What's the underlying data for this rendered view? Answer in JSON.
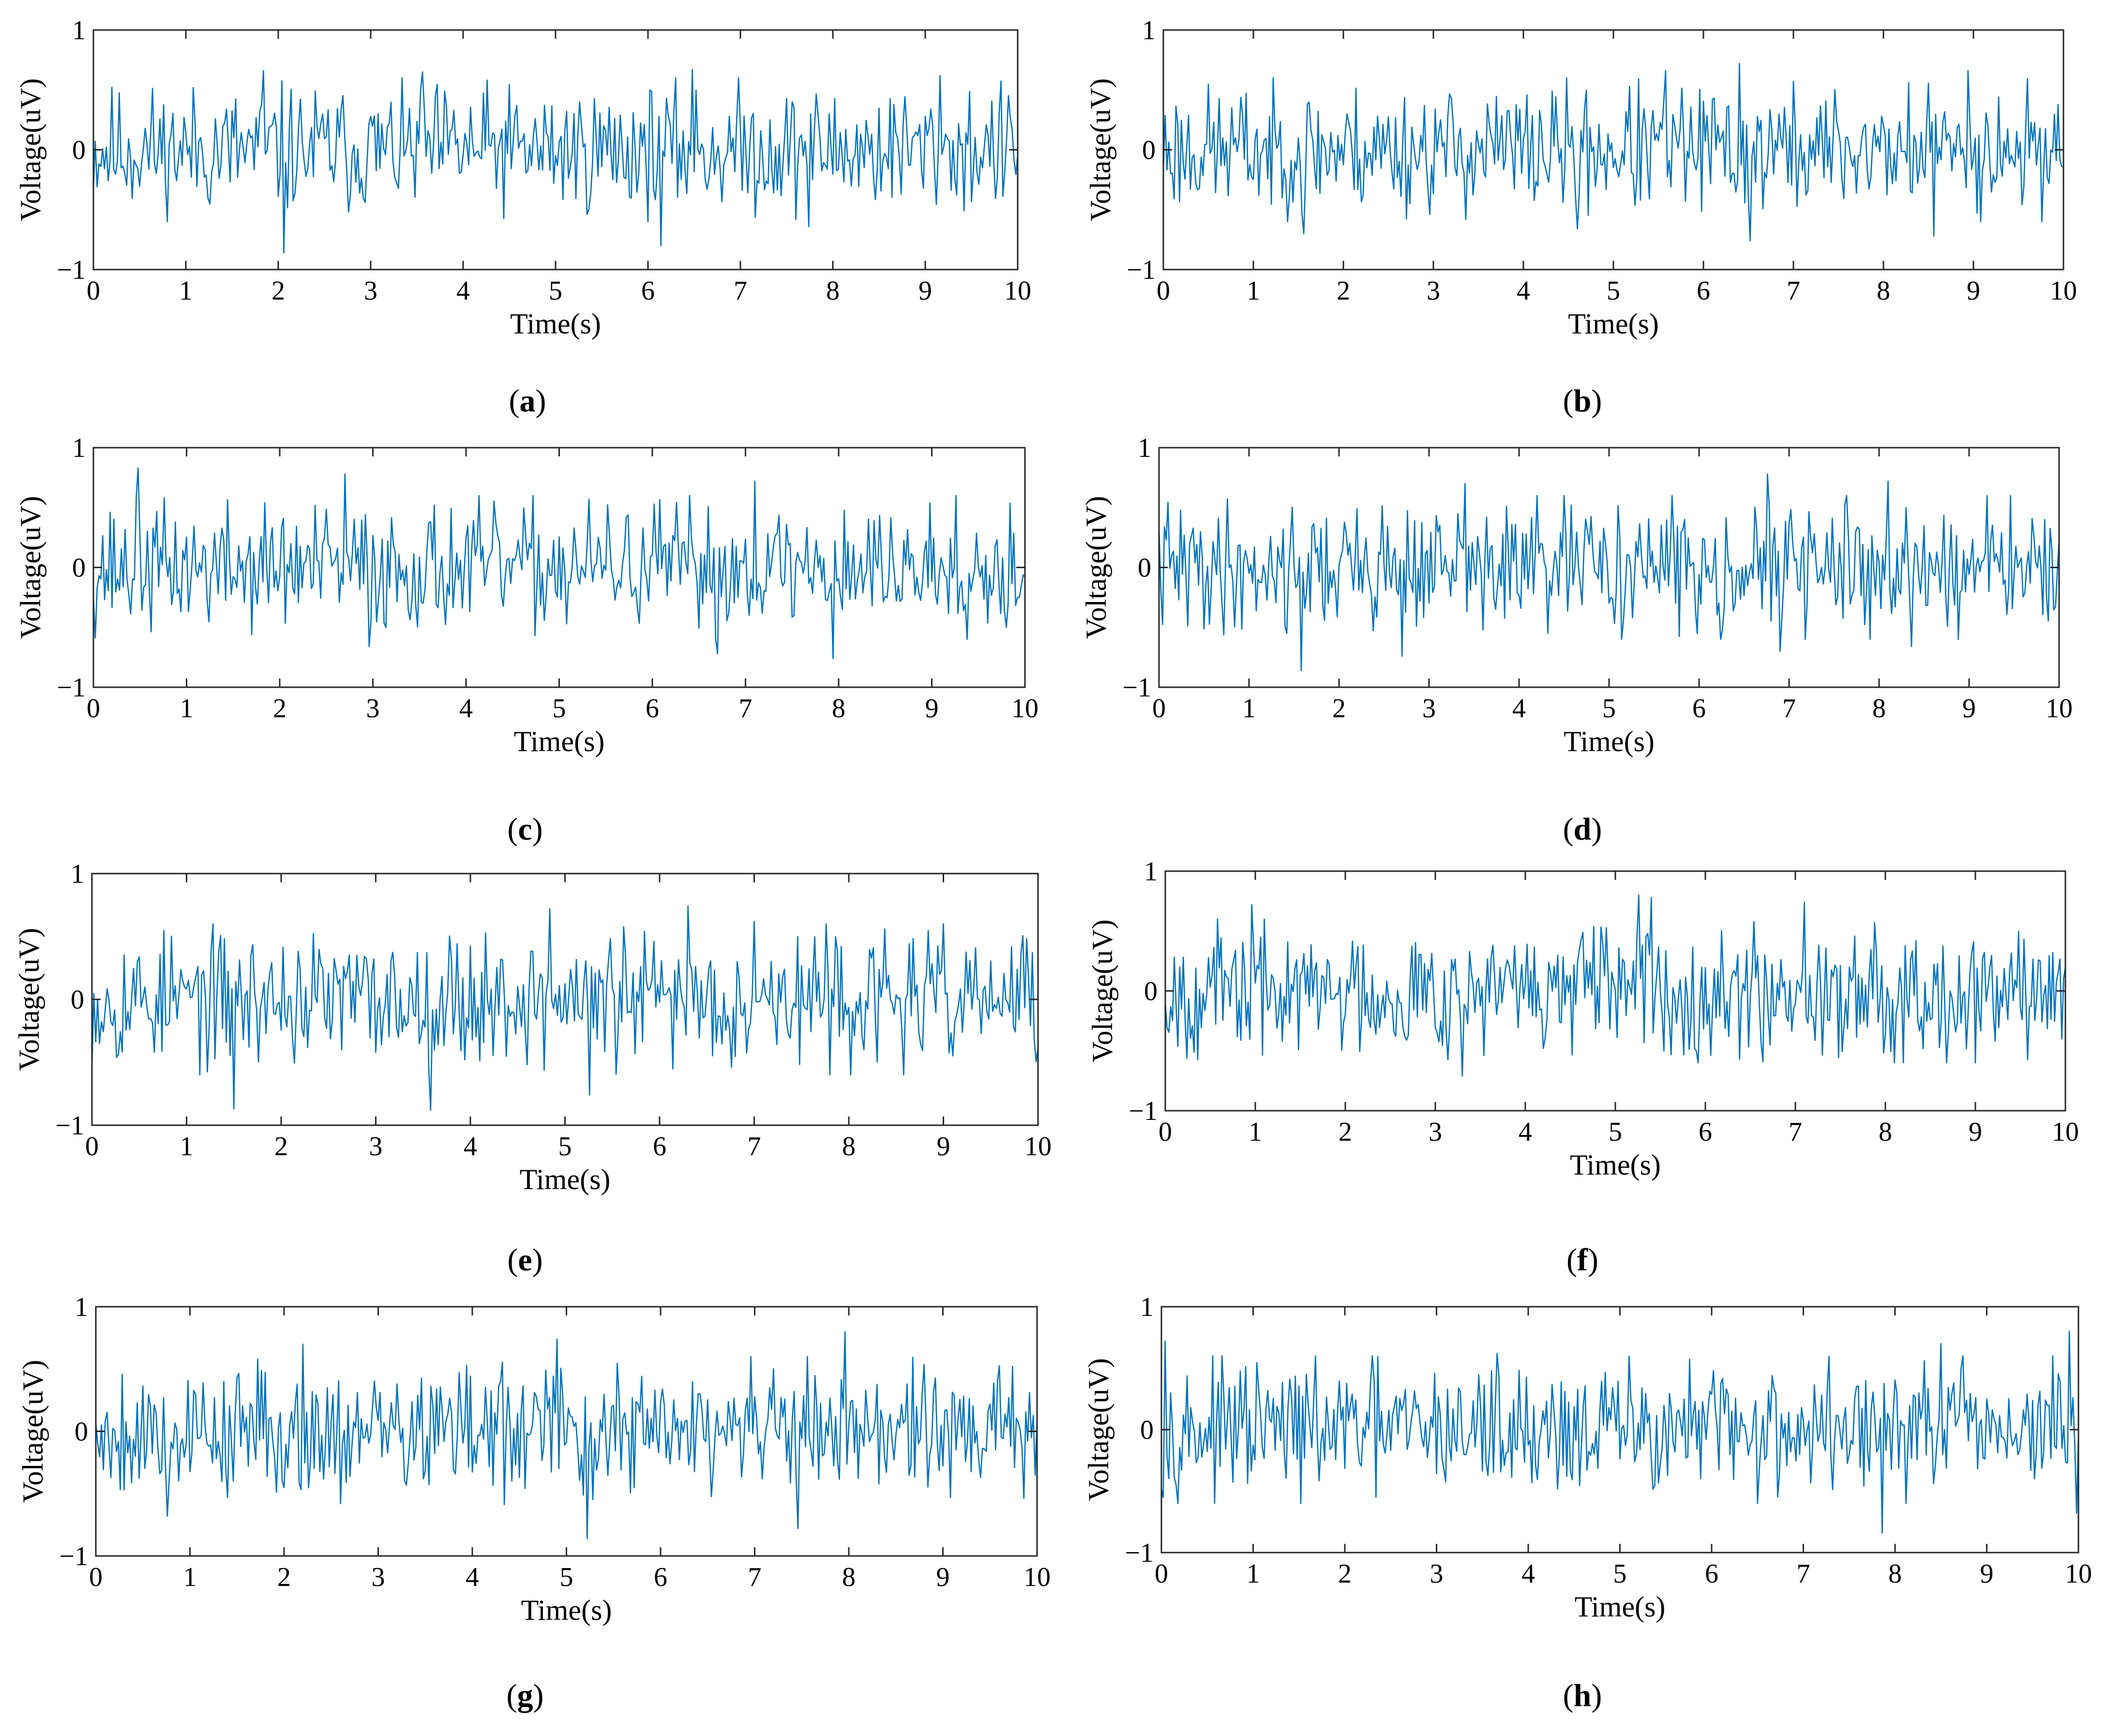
{
  "figure": {
    "style": {
      "trace_color": "#0072BD",
      "axis_color": "#262626"
    }
  },
  "chart_data": [
    {
      "id": "a",
      "label_letter": "a",
      "type": "line",
      "xlabel": "Time(s)",
      "ylabel": "Voltage(uV)",
      "xlim": [
        0,
        10
      ],
      "ylim": [
        -1,
        1
      ],
      "xticks": [
        0,
        1,
        2,
        3,
        4,
        5,
        6,
        7,
        8,
        9,
        10
      ],
      "yticks": [
        -1,
        0,
        1
      ],
      "ytick_labels": [
        "−1",
        "0",
        "1"
      ],
      "sample_rate_hz": 50,
      "duration_s": 10,
      "peaks": [
        [
          1.83,
          0.66
        ],
        [
          2.07,
          -0.86
        ],
        [
          3.55,
          0.65
        ],
        [
          6.13,
          -0.8
        ],
        [
          6.48,
          0.67
        ],
        [
          7.74,
          -0.64
        ],
        [
          9.15,
          0.62
        ]
      ],
      "seed": 11
    },
    {
      "id": "b",
      "label_letter": "b",
      "type": "line",
      "xlabel": "Time(s)",
      "ylabel": "Voltage(uV)",
      "xlim": [
        0,
        10
      ],
      "ylim": [
        -1,
        1
      ],
      "xticks": [
        0,
        1,
        2,
        3,
        4,
        5,
        6,
        7,
        8,
        9,
        10
      ],
      "yticks": [
        -1,
        0,
        1
      ],
      "ytick_labels": [
        "−1",
        "0",
        "1"
      ],
      "sample_rate_hz": 50,
      "duration_s": 10,
      "peaks": [
        [
          1.55,
          -0.7
        ],
        [
          4.6,
          -0.66
        ],
        [
          5.58,
          0.66
        ],
        [
          6.4,
          0.72
        ],
        [
          6.52,
          -0.76
        ],
        [
          8.95,
          0.66
        ],
        [
          8.55,
          -0.72
        ]
      ],
      "seed": 23
    },
    {
      "id": "c",
      "label_letter": "c",
      "type": "line",
      "xlabel": "Time(s)",
      "ylabel": "Voltage(uV)",
      "xlim": [
        0,
        10
      ],
      "ylim": [
        -1,
        1
      ],
      "xticks": [
        0,
        1,
        2,
        3,
        4,
        5,
        6,
        7,
        8,
        9,
        10
      ],
      "yticks": [
        -1,
        0,
        1
      ],
      "ytick_labels": [
        "−1",
        "0",
        "1"
      ],
      "sample_rate_hz": 50,
      "duration_s": 10,
      "peaks": [
        [
          0.48,
          0.83
        ],
        [
          2.7,
          0.78
        ],
        [
          2.95,
          -0.66
        ],
        [
          6.7,
          -0.72
        ],
        [
          7.1,
          0.72
        ],
        [
          7.93,
          -0.76
        ],
        [
          9.25,
          0.6
        ]
      ],
      "seed": 37
    },
    {
      "id": "d",
      "label_letter": "d",
      "type": "line",
      "xlabel": "Time(s)",
      "ylabel": "Voltage(uV)",
      "xlim": [
        0,
        10
      ],
      "ylim": [
        -1,
        1
      ],
      "xticks": [
        0,
        1,
        2,
        3,
        4,
        5,
        6,
        7,
        8,
        9,
        10
      ],
      "yticks": [
        -1,
        0,
        1
      ],
      "ytick_labels": [
        "−1",
        "0",
        "1"
      ],
      "sample_rate_hz": 50,
      "duration_s": 10,
      "peaks": [
        [
          1.57,
          -0.86
        ],
        [
          2.7,
          -0.74
        ],
        [
          3.4,
          0.7
        ],
        [
          6.75,
          0.78
        ],
        [
          6.9,
          -0.7
        ],
        [
          8.1,
          0.72
        ],
        [
          8.35,
          -0.66
        ]
      ],
      "seed": 41
    },
    {
      "id": "e",
      "label_letter": "e",
      "type": "line",
      "xlabel": "Time(s)",
      "ylabel": "Voltage(uV)",
      "xlim": [
        0,
        10
      ],
      "ylim": [
        -1,
        1
      ],
      "xticks": [
        0,
        1,
        2,
        3,
        4,
        5,
        6,
        7,
        8,
        9,
        10
      ],
      "yticks": [
        -1,
        0,
        1
      ],
      "ytick_labels": [
        "−1",
        "0",
        "1"
      ],
      "sample_rate_hz": 50,
      "duration_s": 10,
      "peaks": [
        [
          1.5,
          -0.87
        ],
        [
          3.58,
          -0.88
        ],
        [
          4.85,
          0.72
        ],
        [
          5.25,
          -0.76
        ],
        [
          6.3,
          0.74
        ],
        [
          7.0,
          0.62
        ]
      ],
      "seed": 53
    },
    {
      "id": "f",
      "label_letter": "f",
      "type": "line",
      "xlabel": "Time(s)",
      "ylabel": "Voltage(uV)",
      "xlim": [
        0,
        10
      ],
      "ylim": [
        -1,
        1
      ],
      "xticks": [
        0,
        1,
        2,
        3,
        4,
        5,
        6,
        7,
        8,
        9,
        10
      ],
      "yticks": [
        -1,
        0,
        1
      ],
      "ytick_labels": [
        "−1",
        "0",
        "1"
      ],
      "sample_rate_hz": 50,
      "duration_s": 10,
      "peaks": [
        [
          0.95,
          0.72
        ],
        [
          3.3,
          -0.71
        ],
        [
          5.25,
          0.8
        ],
        [
          5.4,
          0.78
        ],
        [
          7.1,
          0.74
        ],
        [
          9.0,
          -0.6
        ]
      ],
      "seed": 67
    },
    {
      "id": "g",
      "label_letter": "g",
      "type": "line",
      "xlabel": "Time(s)",
      "ylabel": "Voltage(uV)",
      "xlim": [
        0,
        10
      ],
      "ylim": [
        -1,
        1
      ],
      "xticks": [
        0,
        1,
        2,
        3,
        4,
        5,
        6,
        7,
        8,
        9,
        10
      ],
      "yticks": [
        -1,
        0,
        1
      ],
      "ytick_labels": [
        "−1",
        "0",
        "1"
      ],
      "sample_rate_hz": 50,
      "duration_s": 10,
      "peaks": [
        [
          0.75,
          -0.68
        ],
        [
          2.2,
          0.7
        ],
        [
          4.9,
          0.74
        ],
        [
          5.22,
          -0.86
        ],
        [
          7.45,
          -0.78
        ],
        [
          7.95,
          0.8
        ]
      ],
      "seed": 79
    },
    {
      "id": "h",
      "label_letter": "h",
      "type": "line",
      "xlabel": "Time(s)",
      "ylabel": "Voltage(uV)",
      "xlim": [
        0,
        10
      ],
      "ylim": [
        -1,
        1
      ],
      "xticks": [
        0,
        1,
        2,
        3,
        4,
        5,
        6,
        7,
        8,
        9,
        10
      ],
      "yticks": [
        -1,
        0,
        1
      ],
      "ytick_labels": [
        "−1",
        "0",
        "1"
      ],
      "sample_rate_hz": 50,
      "duration_s": 10,
      "peaks": [
        [
          0.03,
          0.72
        ],
        [
          3.65,
          0.62
        ],
        [
          7.85,
          -0.84
        ],
        [
          8.5,
          0.7
        ],
        [
          9.9,
          0.8
        ],
        [
          9.98,
          -0.68
        ]
      ],
      "seed": 97
    }
  ]
}
